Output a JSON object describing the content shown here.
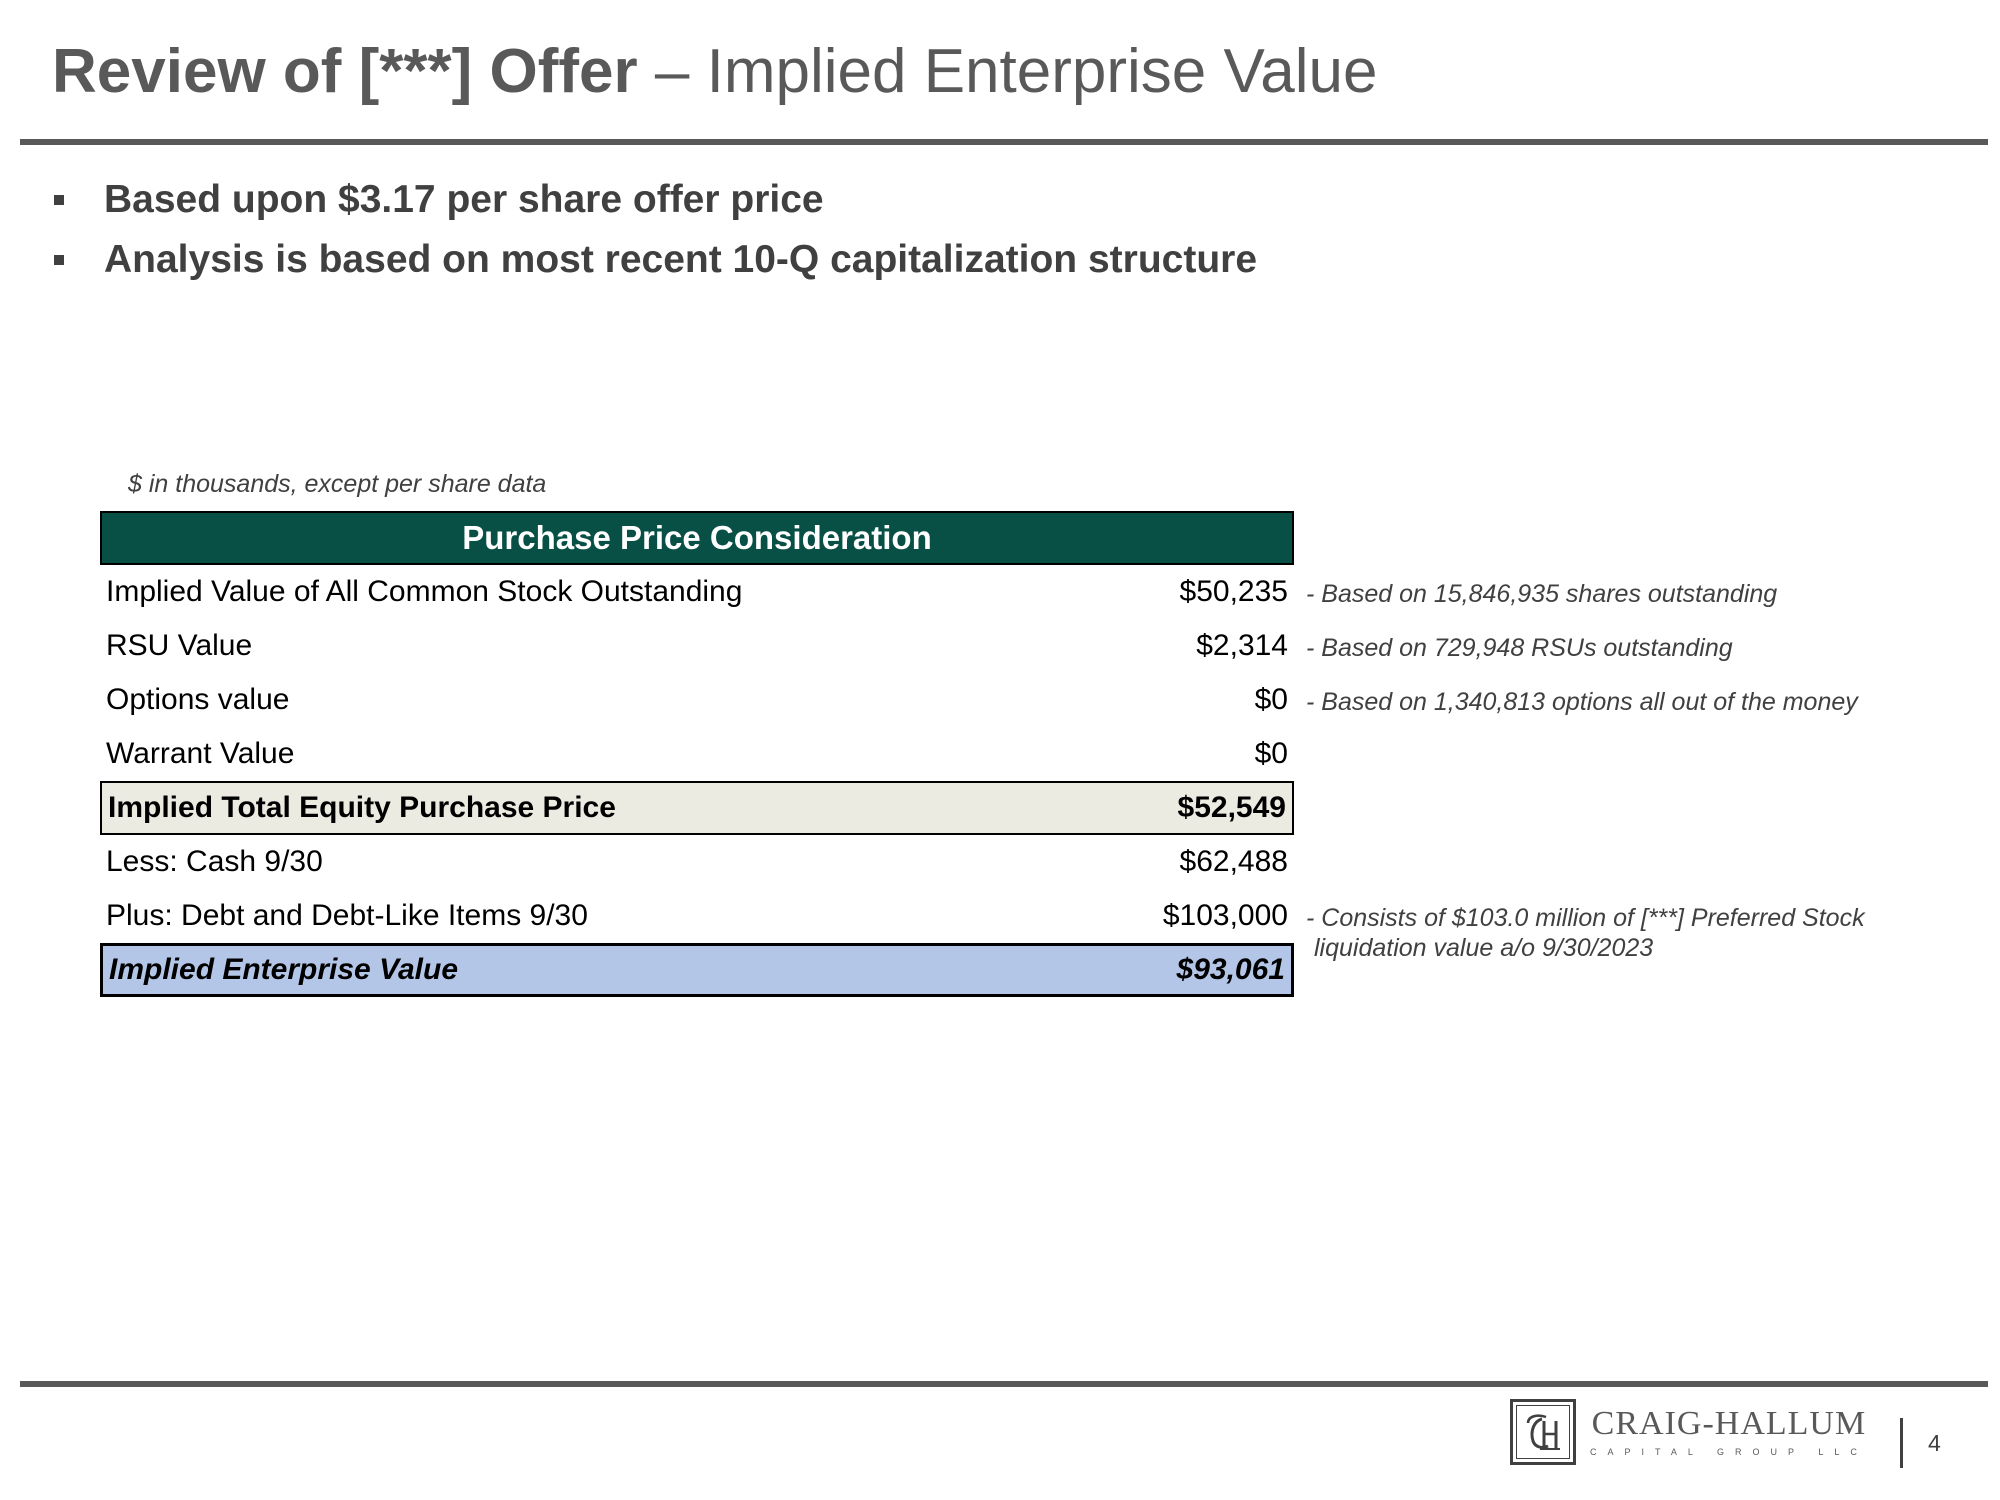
{
  "slide": {
    "title_bold": "Review of [***] Offer",
    "title_light": " – Implied Enterprise Value",
    "bullets": [
      "Based upon $3.17 per share offer price",
      "Analysis is based on most recent 10-Q capitalization structure"
    ],
    "page_number": "4"
  },
  "table": {
    "units_note": "$ in thousands, except per share data",
    "header": "Purchase Price Consideration",
    "rows": [
      {
        "label": "Implied Value of All Common Stock Outstanding",
        "value": "$50,235",
        "note": "- Based on 15,846,935 shares outstanding"
      },
      {
        "label": "RSU Value",
        "value": "$2,314",
        "note": "- Based on 729,948 RSUs outstanding"
      },
      {
        "label": "Options value",
        "value": "$0",
        "note": "- Based on 1,340,813 options all out of the money"
      },
      {
        "label": "Warrant Value",
        "value": "$0"
      },
      {
        "label": "Implied Total Equity Purchase Price",
        "value": "$52,549"
      },
      {
        "label": "Less: Cash 9/30",
        "value": "$62,488"
      },
      {
        "label": "Plus: Debt and Debt-Like Items 9/30",
        "value": "$103,000",
        "note": "- Consists of $103.0 million of [***] Preferred Stock",
        "note_line2": "liquidation value a/o 9/30/2023"
      },
      {
        "label": "Implied Enterprise Value",
        "value": "$93,061"
      }
    ]
  },
  "logo": {
    "name": "CRAIG-HALLUM",
    "subtitle": "CAPITAL GROUP LLC",
    "monogram": "CH"
  },
  "colors": {
    "header_green": "#085045",
    "subtotal_fill": "#ecebe1",
    "total_fill": "#b4c6e7",
    "title_gray": "#595959"
  }
}
